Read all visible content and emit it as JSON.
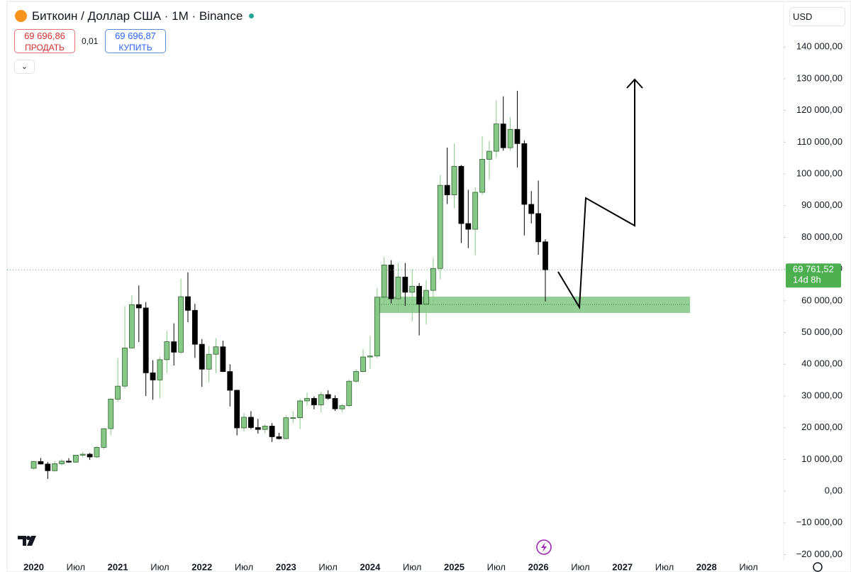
{
  "header": {
    "title": "Биткоин / Доллар США · 1M · Binance",
    "sell_price": "69 696,86",
    "sell_label": "ПРОДАТЬ",
    "spread": "0,01",
    "buy_price": "69 696,87",
    "buy_label": "КУПИТЬ",
    "currency": "USD"
  },
  "chart_data": {
    "type": "candlestick",
    "up_color": "#86c986",
    "down_color": "#000000",
    "open": [
      7200,
      9350,
      8550,
      6450,
      8650,
      9450,
      9150,
      11350,
      11650,
      10780,
      13800,
      19700,
      29000,
      33100,
      45150,
      58800,
      57750,
      37300,
      35050,
      41450,
      47100,
      43800,
      61300,
      57000,
      46300,
      38450,
      43150,
      45500,
      37700,
      31800,
      19950,
      23300,
      20050,
      19450,
      20500,
      17150,
      16550,
      23150,
      23150,
      28450,
      29250,
      27200,
      30450,
      29250,
      25950,
      26950,
      34650,
      37700,
      42300,
      42600,
      61150,
      71300,
      60650,
      67500,
      62700,
      64600,
      58950,
      63300,
      70200,
      96400,
      93400,
      102400,
      84350,
      82550,
      94200,
      104600,
      107150,
      115750,
      108250,
      114050,
      109550,
      90400,
      87500,
      78600
    ],
    "high": [
      9550,
      10500,
      9200,
      9450,
      10080,
      10400,
      11450,
      12470,
      12070,
      14100,
      19500,
      29300,
      41950,
      58350,
      61800,
      64850,
      59600,
      41300,
      42400,
      50500,
      52900,
      67000,
      69000,
      59050,
      47950,
      45800,
      48200,
      47450,
      40000,
      31950,
      24650,
      25200,
      22800,
      21100,
      21450,
      18400,
      23950,
      25250,
      29200,
      31050,
      29850,
      31400,
      31800,
      30200,
      27500,
      35200,
      38450,
      44700,
      48950,
      64000,
      73800,
      72800,
      71950,
      71950,
      70000,
      65600,
      66500,
      73600,
      99600,
      108300,
      109600,
      102800,
      95000,
      95750,
      111900,
      110400,
      123200,
      124450,
      117900,
      126200,
      110600,
      94600,
      97900,
      79400
    ],
    "low": [
      6900,
      8450,
      3850,
      6150,
      8100,
      8950,
      8950,
      10550,
      9850,
      10500,
      13200,
      17600,
      28150,
      32300,
      44950,
      47000,
      30000,
      28800,
      29300,
      37300,
      39600,
      43300,
      53250,
      42000,
      32900,
      34300,
      37200,
      37550,
      26700,
      17600,
      18800,
      19550,
      18150,
      18200,
      15500,
      16300,
      16500,
      21350,
      19550,
      26950,
      25800,
      24800,
      28850,
      25300,
      24900,
      26550,
      34100,
      37600,
      38550,
      41900,
      59000,
      59200,
      56550,
      58400,
      53500,
      49100,
      52550,
      58900,
      66800,
      90500,
      89200,
      78200,
      76600,
      74400,
      93400,
      98200,
      105100,
      107350,
      107300,
      102000,
      80600,
      84400,
      74500,
      59800
    ],
    "close": [
      9350,
      8550,
      6450,
      8650,
      9450,
      9150,
      11350,
      11650,
      10780,
      13800,
      19700,
      29000,
      33100,
      45150,
      58800,
      57750,
      37300,
      35050,
      41450,
      47100,
      43800,
      61300,
      57000,
      46300,
      38450,
      43150,
      45500,
      37700,
      31800,
      19950,
      23300,
      20050,
      19450,
      20500,
      17150,
      16550,
      23150,
      23150,
      28450,
      29250,
      27200,
      30450,
      29250,
      25950,
      26950,
      34650,
      37700,
      42300,
      42600,
      61150,
      71300,
      60650,
      67500,
      62700,
      64600,
      58950,
      63300,
      70200,
      96400,
      93400,
      102400,
      84350,
      82550,
      94200,
      104600,
      107150,
      115750,
      108250,
      114050,
      109550,
      90400,
      87500,
      78600,
      69761.52
    ],
    "xlim": [
      -3.8,
      107
    ],
    "xticks": [
      {
        "value": 0,
        "label": "2020"
      },
      {
        "value": 6,
        "label": "Июл"
      },
      {
        "value": 12,
        "label": "2021"
      },
      {
        "value": 18,
        "label": "Июл"
      },
      {
        "value": 24,
        "label": "2022"
      },
      {
        "value": 30,
        "label": "Июл"
      },
      {
        "value": 36,
        "label": "2023"
      },
      {
        "value": 42,
        "label": "Июл"
      },
      {
        "value": 48,
        "label": "2024"
      },
      {
        "value": 54,
        "label": "Июл"
      },
      {
        "value": 60,
        "label": "2025"
      },
      {
        "value": 66,
        "label": "Июл"
      },
      {
        "value": 72,
        "label": "2026"
      },
      {
        "value": 78,
        "label": "Июл"
      },
      {
        "value": 84,
        "label": "2027"
      },
      {
        "value": 90,
        "label": "Июл"
      },
      {
        "value": 96,
        "label": "2028"
      },
      {
        "value": 102,
        "label": "Июл"
      }
    ],
    "ylim": [
      -21900,
      153700
    ],
    "yticks": [
      {
        "value": 140000,
        "label": "140 000,00"
      },
      {
        "value": 130000,
        "label": "130 000,00"
      },
      {
        "value": 120000,
        "label": "120 000,00"
      },
      {
        "value": 110000,
        "label": "110 000,00"
      },
      {
        "value": 100000,
        "label": "100 000,00"
      },
      {
        "value": 90000,
        "label": "90 000,00"
      },
      {
        "value": 80000,
        "label": "80 000,00"
      },
      {
        "value": 70000,
        "label": "70 000,00"
      },
      {
        "value": 60000,
        "label": "60 000,00"
      },
      {
        "value": 50000,
        "label": "50 000,00"
      },
      {
        "value": 40000,
        "label": "40 000,00"
      },
      {
        "value": 30000,
        "label": "30 000,00"
      },
      {
        "value": 20000,
        "label": "20 000,00"
      },
      {
        "value": 10000,
        "label": "10 000,00"
      },
      {
        "value": 0,
        "label": "0,00"
      },
      {
        "value": -10000,
        "label": "−10 000,00"
      },
      {
        "value": -20000,
        "label": "−20 000,00"
      }
    ],
    "price_line": {
      "value": 69761.52,
      "label": "69 761,52",
      "countdown": "14d 8h",
      "color": "#4caf50"
    }
  }
}
